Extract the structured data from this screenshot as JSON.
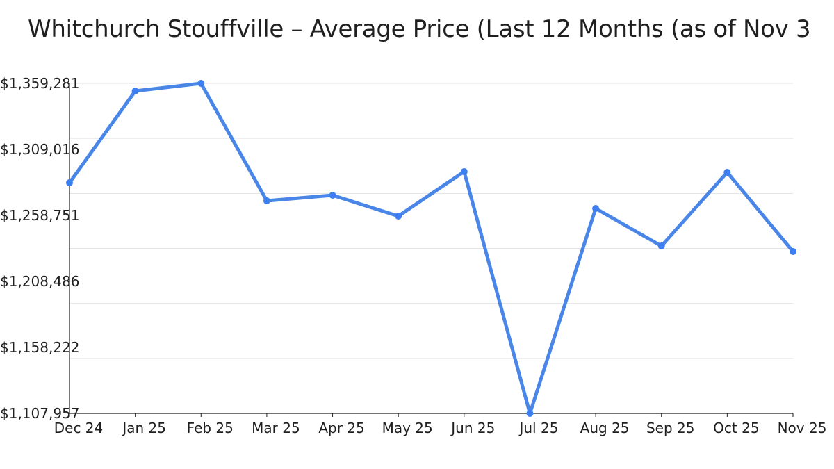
{
  "chart_data": {
    "type": "line",
    "title": "Whitchurch Stouffville – Average Price (Last 12 Months (as of Nov 3",
    "xlabel": "",
    "ylabel": "",
    "categories": [
      "Dec 24",
      "Jan 25",
      "Feb 25",
      "Mar 25",
      "Apr 25",
      "May 25",
      "Jun 25",
      "Jul 25",
      "Aug 25",
      "Sep 25",
      "Oct 25",
      "Nov 25"
    ],
    "series": [
      {
        "name": "Average Price",
        "color": "#4a86e8",
        "values": [
          1283620,
          1353460,
          1359281,
          1269860,
          1274090,
          1258220,
          1292090,
          1107957,
          1264040,
          1235470,
          1291560,
          1231240
        ]
      }
    ],
    "yticks": [
      1107957,
      1158222,
      1208486,
      1258751,
      1309016,
      1359281
    ],
    "ytick_labels": [
      "$1,107,957",
      "$1,158,222",
      "$1,208,486",
      "$1,258,751",
      "$1,309,016",
      "$1,359,281"
    ],
    "ylim": [
      1107957,
      1359281
    ],
    "grid": true,
    "legend": false
  },
  "colors": {
    "line": "#4a86e8",
    "marker": "#3d7ef0",
    "grid": "#e3e3e3",
    "axis": "#1f1f1f",
    "text": "#1f1f1f"
  }
}
